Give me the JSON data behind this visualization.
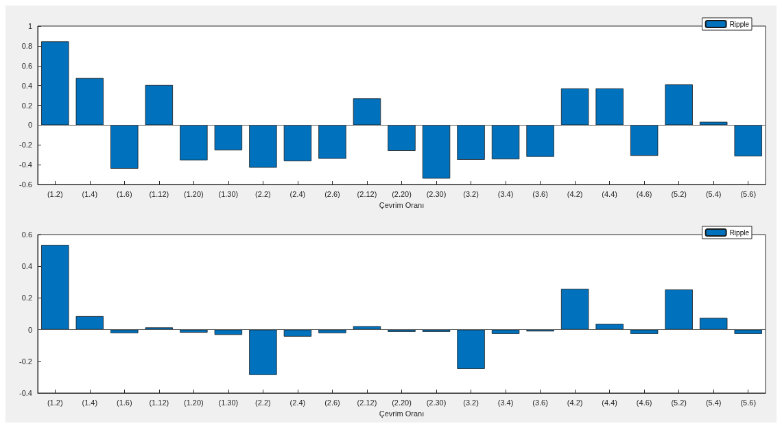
{
  "chart_data": [
    {
      "type": "bar",
      "xlabel": "Çevrim Oranı",
      "categories": [
        "(1.2)",
        "(1.4)",
        "(1.6)",
        "(1.12)",
        "(1.20)",
        "(1.30)",
        "(2.2)",
        "(2.4)",
        "(2.6)",
        "(2.12)",
        "(2.20)",
        "(2.30)",
        "(3.2)",
        "(3.4)",
        "(3.6)",
        "(4.2)",
        "(4.4)",
        "(4.6)",
        "(5.2)",
        "(5.4)",
        "(5.6)"
      ],
      "series": [
        {
          "name": "Ripple",
          "color": "#0072bd",
          "values": [
            0.845,
            0.475,
            -0.44,
            0.405,
            -0.355,
            -0.255,
            -0.43,
            -0.365,
            -0.34,
            0.27,
            -0.26,
            -0.54,
            -0.35,
            -0.345,
            -0.32,
            0.37,
            0.37,
            -0.31,
            0.41,
            0.033,
            -0.315
          ]
        }
      ],
      "ylim": [
        -0.6,
        1
      ],
      "yticks": [
        -0.6,
        -0.4,
        -0.2,
        0,
        0.2,
        0.4,
        0.6,
        0.8,
        1
      ],
      "legend": "top right"
    },
    {
      "type": "bar",
      "xlabel": "Çevrim Oranı",
      "categories": [
        "(1.2)",
        "(1.4)",
        "(1.6)",
        "(1.12)",
        "(1.20)",
        "(1.30)",
        "(2.2)",
        "(2.4)",
        "(2.6)",
        "(2.12)",
        "(2.20)",
        "(2.30)",
        "(3.2)",
        "(3.4)",
        "(3.6)",
        "(4.2)",
        "(4.4)",
        "(4.6)",
        "(5.2)",
        "(5.4)",
        "(5.6)"
      ],
      "series": [
        {
          "name": "Ripple",
          "color": "#0072bd",
          "values": [
            0.535,
            0.085,
            -0.022,
            0.014,
            -0.019,
            -0.033,
            -0.286,
            -0.044,
            -0.022,
            0.022,
            -0.014,
            -0.014,
            -0.248,
            -0.027,
            -0.011,
            0.258,
            0.037,
            -0.027,
            0.253,
            0.074,
            -0.027
          ]
        }
      ],
      "ylim": [
        -0.4,
        0.6
      ],
      "yticks": [
        -0.4,
        -0.2,
        0,
        0.2,
        0.4,
        0.6
      ],
      "legend": "top right"
    }
  ]
}
